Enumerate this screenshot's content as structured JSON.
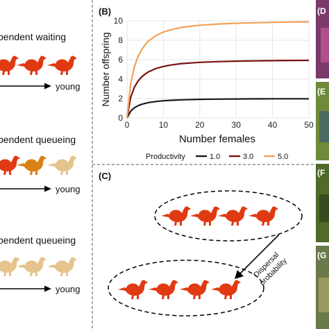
{
  "panels": {
    "left": {
      "heading1": "pendent waiting",
      "heading2": "pendent queueing",
      "heading3": "pendent queueing",
      "young1": "young",
      "young2": "young",
      "young3": "young"
    },
    "b": {
      "label": "(B)"
    },
    "c": {
      "label": "(C)",
      "dispersal_line1": "Dispersal",
      "dispersal_line2": "probability"
    },
    "right_strip": {
      "labels": [
        "(D",
        "(E",
        "(F",
        "(G"
      ]
    }
  },
  "colors": {
    "bird_red": "#e03a12",
    "bird_orange": "#d98217",
    "bird_tan": "#e5c48d",
    "line_1": "#1a1a1a",
    "line_3": "#7a1212",
    "line_5": "#f2a15a"
  },
  "chart_data": {
    "type": "line",
    "xlabel": "Number females",
    "ylabel": "Number offspring",
    "xlim": [
      0,
      50
    ],
    "ylim": [
      0,
      10
    ],
    "x_ticks": [
      "0",
      "10",
      "20",
      "30",
      "40",
      "50"
    ],
    "y_ticks": [
      "0",
      "2",
      "4",
      "6",
      "8",
      "10"
    ],
    "legend_title": "Productivity",
    "legend_position": "bottom",
    "grid": true,
    "x": [
      0,
      1,
      2,
      3,
      4,
      5,
      6,
      8,
      10,
      12,
      15,
      20,
      25,
      30,
      35,
      40,
      45,
      50
    ],
    "series": [
      {
        "name": "1.0",
        "values": [
          0.0,
          0.7,
          1.05,
          1.26,
          1.41,
          1.51,
          1.59,
          1.7,
          1.77,
          1.82,
          1.87,
          1.92,
          1.94,
          1.96,
          1.97,
          1.98,
          1.98,
          1.98
        ]
      },
      {
        "name": "3.0",
        "values": [
          0.0,
          2.1,
          3.15,
          3.78,
          4.22,
          4.53,
          4.77,
          5.1,
          5.3,
          5.45,
          5.6,
          5.73,
          5.8,
          5.85,
          5.88,
          5.9,
          5.92,
          5.93
        ]
      },
      {
        "name": "5.0",
        "values": [
          0.0,
          3.5,
          5.25,
          6.3,
          7.03,
          7.55,
          7.95,
          8.5,
          8.84,
          9.08,
          9.33,
          9.55,
          9.67,
          9.75,
          9.8,
          9.84,
          9.87,
          9.89
        ]
      }
    ]
  }
}
